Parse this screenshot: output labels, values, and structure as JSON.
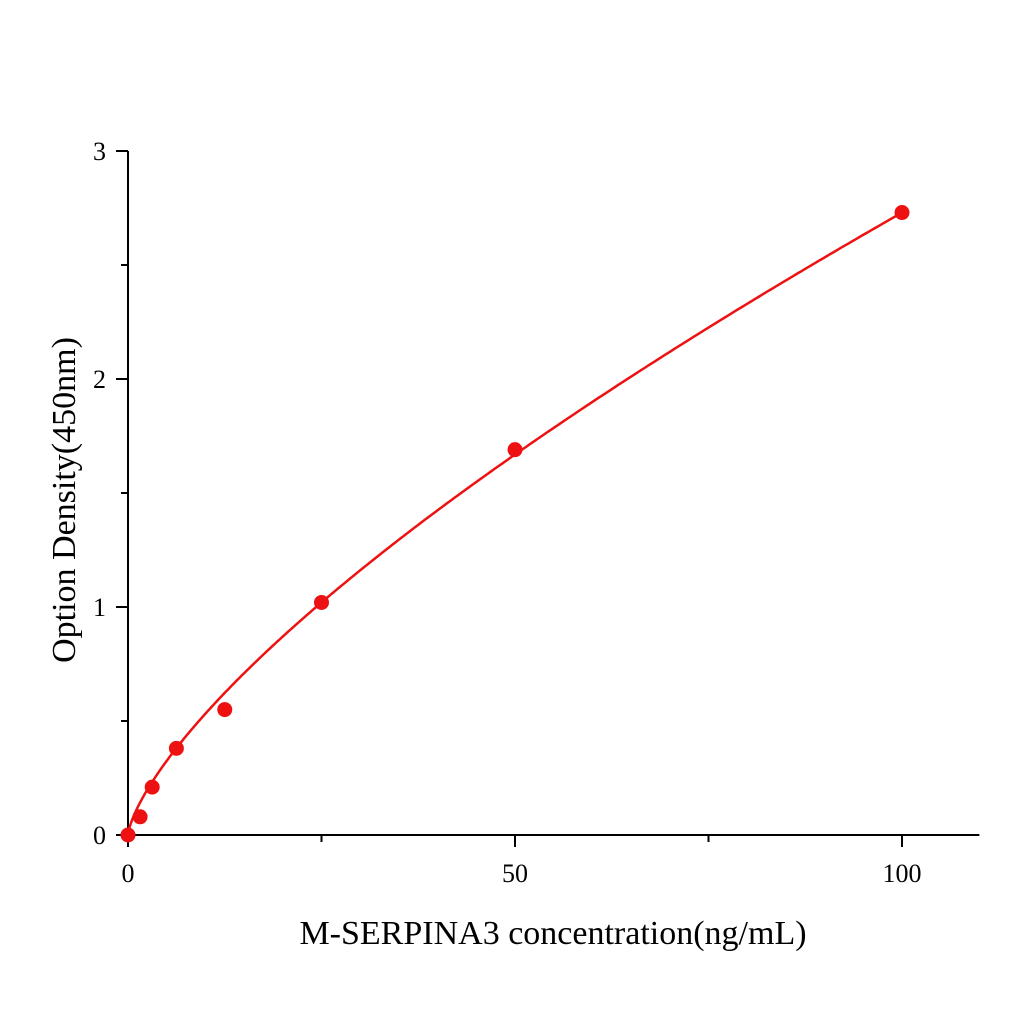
{
  "chart_data": {
    "type": "scatter",
    "xlabel": "M-SERPINA3 concentration(ng/mL)",
    "ylabel": "Option Density(450nm)",
    "xlim": [
      0,
      110
    ],
    "ylim": [
      0,
      3
    ],
    "x_ticks": [
      "0",
      "50",
      "100"
    ],
    "y_ticks": [
      "0",
      "1",
      "2",
      "3"
    ],
    "grid": false,
    "color": "#ee1111",
    "series": [
      {
        "x": [
          0,
          1.5625,
          3.125,
          6.25,
          12.5,
          25,
          50,
          100
        ],
        "y": [
          0.0,
          0.08,
          0.21,
          0.38,
          0.55,
          1.02,
          1.69,
          2.73
        ]
      }
    ],
    "fit_curve": true
  }
}
